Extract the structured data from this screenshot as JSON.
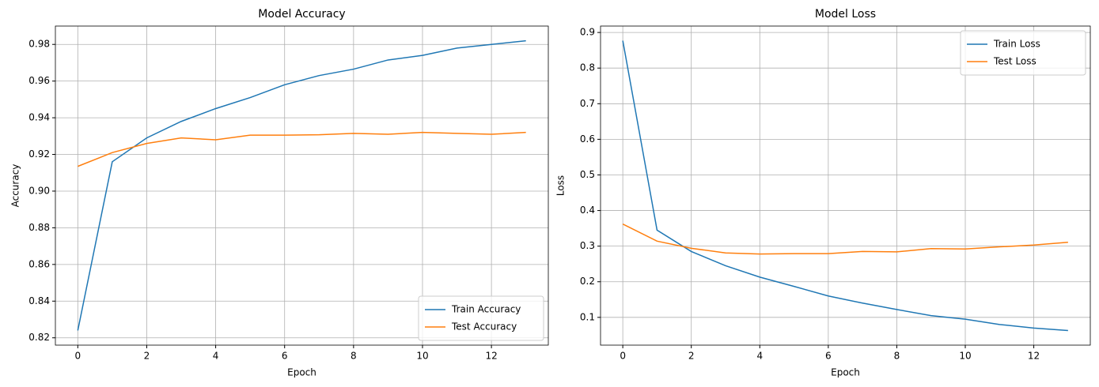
{
  "chart_data": [
    {
      "type": "line",
      "title": "Model Accuracy",
      "xlabel": "Epoch",
      "ylabel": "Accuracy",
      "x": [
        0,
        1,
        2,
        3,
        4,
        5,
        6,
        7,
        8,
        9,
        10,
        11,
        12,
        13
      ],
      "series": [
        {
          "name": "Train Accuracy",
          "color": "#1f77b4",
          "values": [
            0.824,
            0.916,
            0.929,
            0.938,
            0.945,
            0.951,
            0.958,
            0.963,
            0.9665,
            0.9715,
            0.974,
            0.978,
            0.98,
            0.982
          ]
        },
        {
          "name": "Test Accuracy",
          "color": "#ff7f0e",
          "values": [
            0.9135,
            0.921,
            0.926,
            0.929,
            0.928,
            0.9305,
            0.9305,
            0.9307,
            0.9315,
            0.931,
            0.932,
            0.9315,
            0.931,
            0.932
          ]
        }
      ],
      "xlim": [
        -0.65,
        13.65
      ],
      "ylim": [
        0.816,
        0.99
      ],
      "xticks": [
        0,
        2,
        4,
        6,
        8,
        10,
        12
      ],
      "yticks": [
        0.82,
        0.84,
        0.86,
        0.88,
        {
          "value": 0.9,
          "label": "0.90"
        },
        0.92,
        0.94,
        0.96,
        0.98
      ],
      "grid": true,
      "legend": "lower right"
    },
    {
      "type": "line",
      "title": "Model Loss",
      "xlabel": "Epoch",
      "ylabel": "Loss",
      "x": [
        0,
        1,
        2,
        3,
        4,
        5,
        6,
        7,
        8,
        9,
        10,
        11,
        12,
        13
      ],
      "series": [
        {
          "name": "Train Loss",
          "color": "#1f77b4",
          "values": [
            0.877,
            0.345,
            0.285,
            0.245,
            0.213,
            0.187,
            0.16,
            0.14,
            0.122,
            0.105,
            0.095,
            0.08,
            0.07,
            0.063
          ]
        },
        {
          "name": "Test Loss",
          "color": "#ff7f0e",
          "values": [
            0.362,
            0.314,
            0.294,
            0.281,
            0.278,
            0.279,
            0.279,
            0.285,
            0.284,
            0.293,
            0.292,
            0.298,
            0.303,
            0.311
          ]
        }
      ],
      "xlim": [
        -0.65,
        13.65
      ],
      "ylim": [
        0.022,
        0.918
      ],
      "xticks": [
        0,
        2,
        4,
        6,
        8,
        10,
        12
      ],
      "yticks": [
        0.1,
        0.2,
        0.3,
        0.4,
        0.5,
        0.6,
        0.7,
        0.8,
        0.9
      ],
      "grid": true,
      "legend": "upper right"
    }
  ]
}
